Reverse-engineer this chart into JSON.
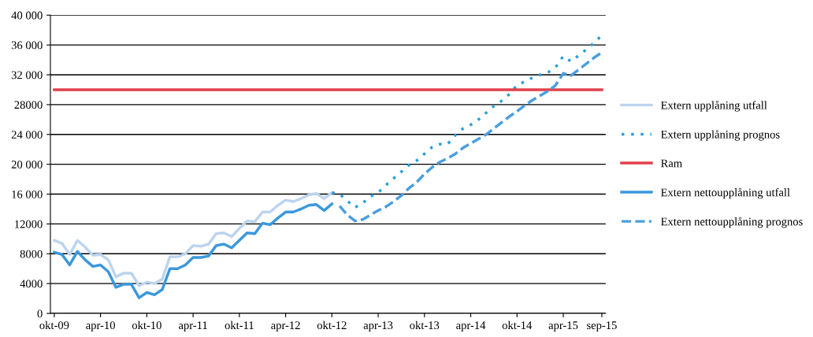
{
  "chart_data": {
    "type": "line",
    "categories": [
      "okt-09",
      null,
      null,
      null,
      null,
      null,
      "apr-10",
      null,
      null,
      null,
      null,
      null,
      "okt-10",
      null,
      null,
      null,
      null,
      null,
      "apr-11",
      null,
      null,
      null,
      null,
      null,
      "okt-11",
      null,
      null,
      null,
      null,
      null,
      "apr-12",
      null,
      null,
      null,
      null,
      null,
      "okt-12",
      null,
      null,
      null,
      null,
      null,
      "apr-13",
      null,
      null,
      null,
      null,
      null,
      "okt-13",
      null,
      null,
      null,
      null,
      null,
      "apr-14",
      null,
      null,
      null,
      null,
      null,
      "okt-14",
      null,
      null,
      null,
      null,
      null,
      "apr-15",
      null,
      null,
      null,
      null,
      "sep-15"
    ],
    "series": [
      {
        "name": "Extern upplåning utfall",
        "color": "#bcd4ee",
        "line_style": "solid",
        "values": [
          9800,
          9400,
          7900,
          9800,
          8900,
          7800,
          7900,
          7200,
          4900,
          5400,
          5400,
          3700,
          4200,
          4000,
          4600,
          7600,
          7600,
          8000,
          9100,
          9000,
          9300,
          10700,
          10800,
          10300,
          11400,
          12400,
          12300,
          13600,
          13600,
          14500,
          15200,
          15000,
          15400,
          15900,
          16100,
          15400,
          16200,
          null,
          null,
          null,
          null,
          null,
          null,
          null,
          null,
          null,
          null,
          null,
          null,
          null,
          null,
          null,
          null,
          null,
          null,
          null,
          null,
          null,
          null,
          null,
          null,
          null,
          null,
          null,
          null,
          null,
          null,
          null,
          null,
          null,
          null,
          null
        ]
      },
      {
        "name": "Extern upplåning prognos",
        "color": "#2a9fd8",
        "line_style": "dotted",
        "values": [
          null,
          null,
          null,
          null,
          null,
          null,
          null,
          null,
          null,
          null,
          null,
          null,
          null,
          null,
          null,
          null,
          null,
          null,
          null,
          null,
          null,
          null,
          null,
          null,
          null,
          null,
          null,
          null,
          null,
          null,
          null,
          null,
          null,
          null,
          null,
          null,
          16200,
          16000,
          15100,
          14200,
          14800,
          15700,
          16200,
          17200,
          18100,
          19000,
          19900,
          20500,
          21400,
          22300,
          22700,
          22700,
          23900,
          24800,
          25300,
          26000,
          26900,
          27800,
          28500,
          29400,
          30600,
          31100,
          31600,
          32000,
          32300,
          33000,
          34500,
          33800,
          34600,
          35400,
          36300,
          37300
        ]
      },
      {
        "name": "Ram",
        "color": "#e0404a",
        "line_style": "solid",
        "values": [
          30000,
          30000,
          30000,
          30000,
          30000,
          30000,
          30000,
          30000,
          30000,
          30000,
          30000,
          30000,
          30000,
          30000,
          30000,
          30000,
          30000,
          30000,
          30000,
          30000,
          30000,
          30000,
          30000,
          30000,
          30000,
          30000,
          30000,
          30000,
          30000,
          30000,
          30000,
          30000,
          30000,
          30000,
          30000,
          30000,
          30000,
          30000,
          30000,
          30000,
          30000,
          30000,
          30000,
          30000,
          30000,
          30000,
          30000,
          30000,
          30000,
          30000,
          30000,
          30000,
          30000,
          30000,
          30000,
          30000,
          30000,
          30000,
          30000,
          30000,
          30000,
          30000,
          30000,
          30000,
          30000,
          30000,
          30000,
          30000,
          30000,
          30000,
          30000,
          30000
        ]
      },
      {
        "name": "Extern nettoupplåning utfall",
        "color": "#3a98dc",
        "line_style": "solid",
        "values": [
          8200,
          7900,
          6500,
          8300,
          7200,
          6300,
          6500,
          5600,
          3500,
          3900,
          3900,
          2100,
          2800,
          2500,
          3200,
          6000,
          6000,
          6500,
          7500,
          7500,
          7700,
          9100,
          9300,
          8800,
          9800,
          10800,
          10700,
          12100,
          11900,
          12800,
          13600,
          13600,
          14000,
          14500,
          14600,
          13800,
          14700,
          null,
          null,
          null,
          null,
          null,
          null,
          null,
          null,
          null,
          null,
          null,
          null,
          null,
          null,
          null,
          null,
          null,
          null,
          null,
          null,
          null,
          null,
          null,
          null,
          null,
          null,
          null,
          null,
          null,
          null,
          null,
          null,
          null,
          null,
          null
        ]
      },
      {
        "name": "Extern nettoupplåning prognos",
        "color": "#4a9ee0",
        "line_style": "dashed",
        "values": [
          null,
          null,
          null,
          null,
          null,
          null,
          null,
          null,
          null,
          null,
          null,
          null,
          null,
          null,
          null,
          null,
          null,
          null,
          null,
          null,
          null,
          null,
          null,
          null,
          null,
          null,
          null,
          null,
          null,
          null,
          null,
          null,
          null,
          null,
          null,
          null,
          null,
          14400,
          13200,
          12400,
          12600,
          13200,
          13800,
          14300,
          15000,
          15800,
          16800,
          17600,
          18700,
          19600,
          20300,
          20800,
          21400,
          22200,
          22800,
          23400,
          24000,
          24800,
          25600,
          26400,
          27100,
          27900,
          28600,
          29200,
          29800,
          30600,
          32200,
          31900,
          32700,
          33500,
          34300,
          35000
        ]
      }
    ],
    "ylim": [
      0,
      40000
    ],
    "yticks": [
      0,
      {
        "value": 4000,
        "label": "4000"
      },
      {
        "value": 8000,
        "label": "8000"
      },
      {
        "value": 12000,
        "label": "12000"
      },
      {
        "value": 16000,
        "label": "16 000"
      },
      {
        "value": 20000,
        "label": "20 000"
      },
      {
        "value": 24000,
        "label": "24 000"
      },
      {
        "value": 28000,
        "label": "28000"
      },
      {
        "value": 32000,
        "label": "32 000"
      },
      {
        "value": 36000,
        "label": "36 000"
      },
      {
        "value": 40000,
        "label": "40 000"
      }
    ],
    "grid": "y",
    "legend": "right",
    "marker": "none"
  }
}
